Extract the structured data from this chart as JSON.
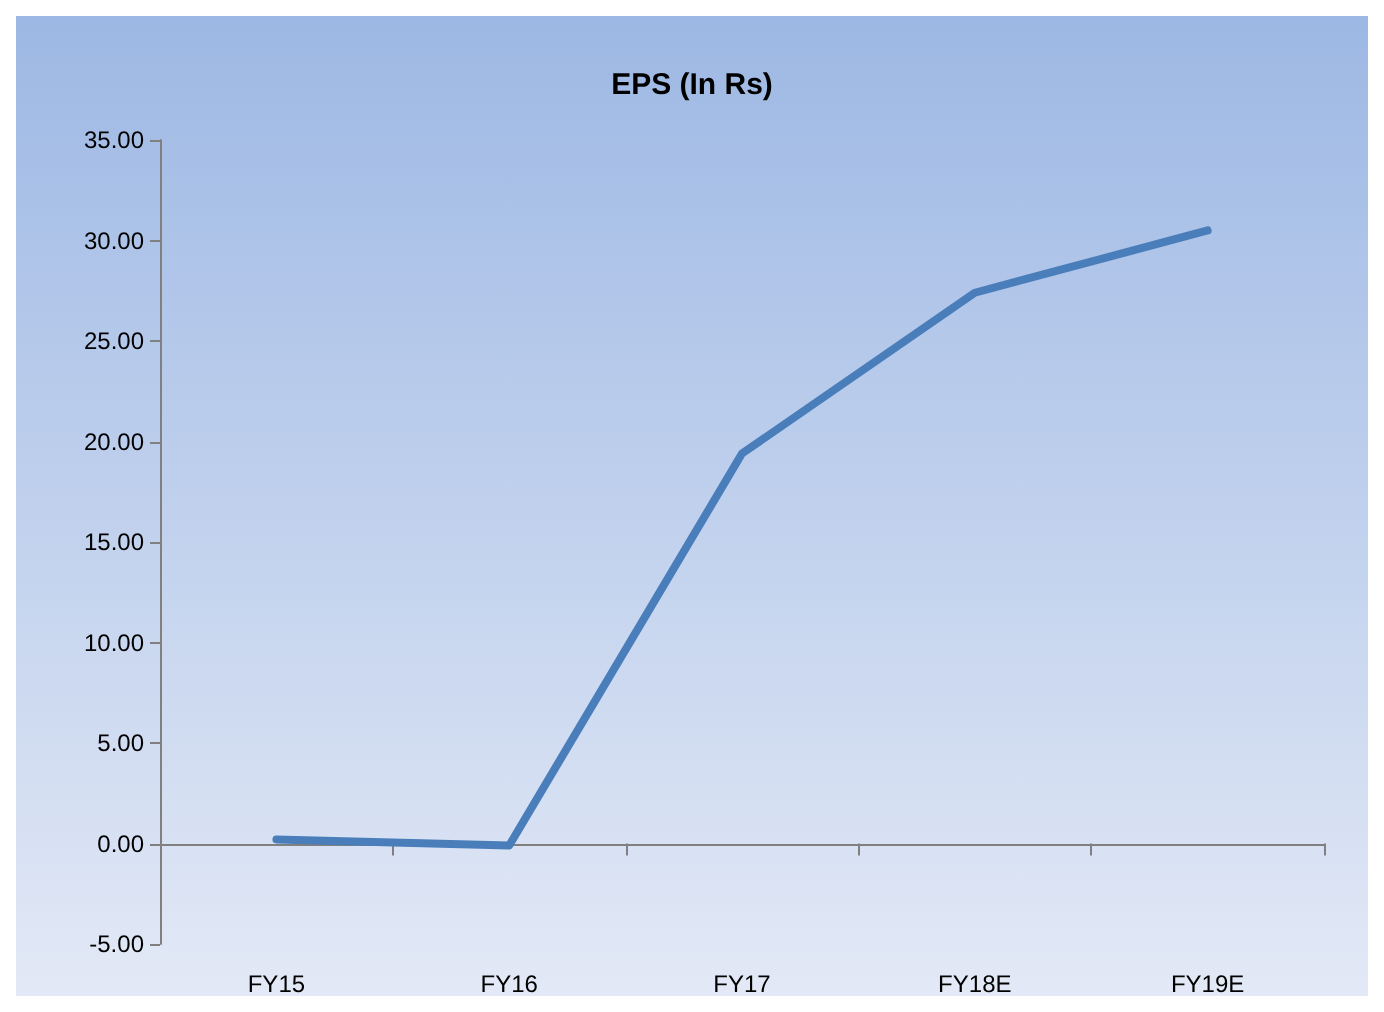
{
  "chart_data": {
    "type": "line",
    "title": "EPS (In Rs)",
    "categories": [
      "FY15",
      "FY16",
      "FY17",
      "FY18E",
      "FY19E"
    ],
    "series": [
      {
        "color": "#4a7ebb",
        "values": [
          0.2,
          -0.1,
          19.4,
          27.4,
          30.5
        ]
      }
    ],
    "ylim": [
      -5,
      35
    ],
    "yticks": [
      {
        "value": -5,
        "label": "-5.00"
      },
      {
        "value": 0,
        "label": "0.00"
      },
      {
        "value": 5,
        "label": "5.00"
      },
      {
        "value": 10,
        "label": "10.00"
      },
      {
        "value": 15,
        "label": "15.00"
      },
      {
        "value": 20,
        "label": "20.00"
      },
      {
        "value": 25,
        "label": "25.00"
      },
      {
        "value": 30,
        "label": "30.00"
      },
      {
        "value": 35,
        "label": "35.00"
      }
    ],
    "marker": "none",
    "line_style": "solid"
  }
}
